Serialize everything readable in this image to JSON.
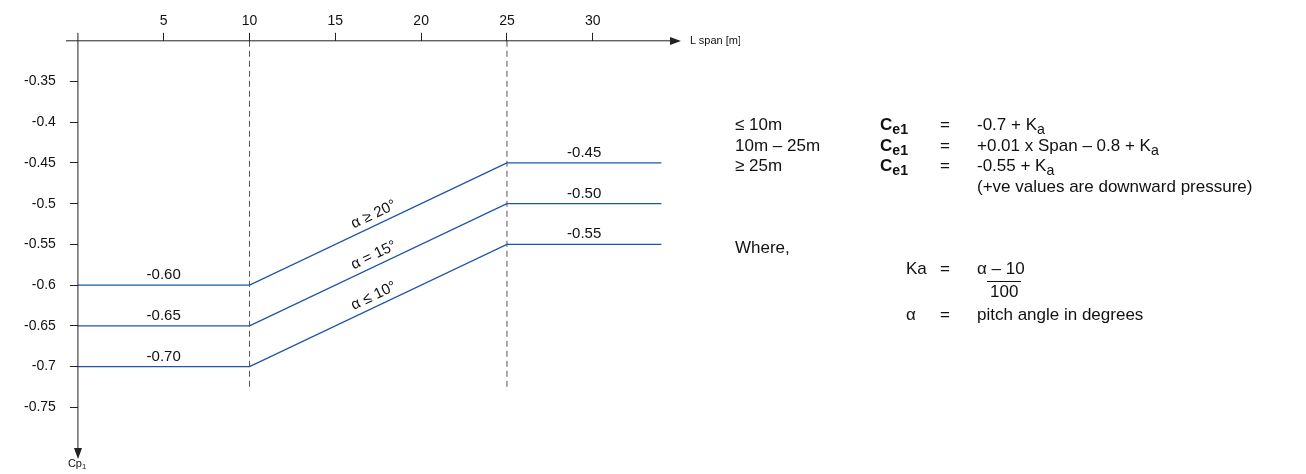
{
  "chart_data": {
    "type": "line",
    "xlabel": "L span [m]",
    "ylabel": "Cp$_{1}$",
    "x": [
      0,
      10,
      25,
      34
    ],
    "series": [
      {
        "name": "α ≥ 20°",
        "color": "#1f55a8",
        "values": [
          -0.6,
          -0.6,
          -0.45,
          -0.45
        ]
      },
      {
        "name": "α = 15°",
        "color": "#1f55a8",
        "values": [
          -0.65,
          -0.65,
          -0.5,
          -0.5
        ]
      },
      {
        "name": "α ≤ 10°",
        "color": "#1f55a8",
        "values": [
          -0.7,
          -0.7,
          -0.55,
          -0.55
        ]
      }
    ],
    "xlim": [
      0,
      34.5
    ],
    "xticks": [
      5,
      10,
      15,
      20,
      25,
      30
    ],
    "ylim": [
      -0.8,
      -0.3
    ],
    "yticks": [
      -0.75,
      -0.7,
      -0.65,
      -0.6,
      -0.55,
      -0.5,
      -0.45,
      -0.4,
      -0.35
    ],
    "grid": false,
    "legend": false,
    "marker": "none",
    "line_style": "solid",
    "ref_lines": [
      {
        "axis": "x",
        "value": 10,
        "color": "#555555",
        "line_style": "dashed"
      },
      {
        "axis": "x",
        "value": 25,
        "color": "#555555",
        "line_style": "dashed"
      }
    ],
    "annotations": [
      {
        "text": "-0.60",
        "y": -0.6
      },
      {
        "text": "-0.65",
        "y": -0.65
      },
      {
        "text": "-0.70",
        "y": -0.7
      },
      {
        "text": "-0.45",
        "y": -0.45
      },
      {
        "text": "-0.50",
        "y": -0.5
      },
      {
        "text": "-0.55",
        "y": -0.55
      },
      "≤ 10m",
      "C$_{e1}$",
      "=",
      "-0.7 + K$_{a}$",
      "10m – 25m",
      "C$_{e1}$",
      "=",
      "+0.01 x Span – 0.8 + K$_{a}$",
      "≥ 25m",
      "C$_{e1}$",
      "=",
      "-0.55 + K$_{a}$",
      "(+ve values are downward pressure)",
      "Where,",
      "Ka",
      "=",
      "α – 10",
      "100",
      "α",
      "=",
      "pitch angle in degrees"
    ]
  }
}
